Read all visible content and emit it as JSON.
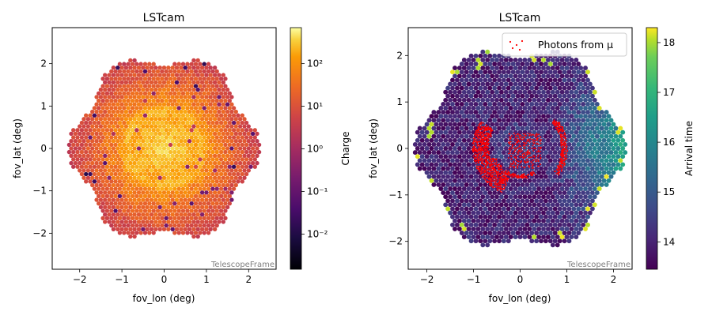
{
  "chart_data": [
    {
      "type": "heatmap",
      "title": "LSTcam",
      "xlabel": "fov_lon  (deg)",
      "ylabel": "fov_lat  (deg)",
      "xlim": [
        -2.65,
        2.65
      ],
      "ylim": [
        -2.85,
        2.85
      ],
      "xticks": [
        -2,
        -1,
        0,
        1,
        2
      ],
      "yticks": [
        -2,
        -1,
        0,
        1,
        2
      ],
      "tick_labels_x": [
        "−2",
        "−1",
        "0",
        "1",
        "2"
      ],
      "tick_labels_y": [
        "−2",
        "−1",
        "0",
        "1",
        "2"
      ],
      "frame_label": "TelescopeFrame",
      "camera_radius_deg": 2.3,
      "pixel_pitch_deg": 0.1,
      "colorbar": {
        "label": "Charge",
        "scale": "log",
        "colormap": "inferno",
        "range": [
          0.0015,
          700
        ],
        "ticks": [
          0.01,
          0.1,
          1,
          10,
          100
        ],
        "tick_labels": [
          "10⁻²",
          "10⁻¹",
          "10⁰",
          "10¹",
          "10²"
        ]
      },
      "pattern": "charge peaks near the camera center (~100–300) and falls to ~1 toward the edges; a faint ring around radius ~0.9 deg",
      "colors": {
        "low": "#000004",
        "mid": "#bc3754",
        "high": "#fcffa4"
      }
    },
    {
      "type": "heatmap",
      "title": "LSTcam",
      "xlabel": "fov_lon  (deg)",
      "ylabel": "fov_lat  (deg)",
      "xlim": [
        -2.4,
        2.4
      ],
      "ylim": [
        -2.6,
        2.6
      ],
      "xticks": [
        -2,
        -1,
        0,
        1,
        2
      ],
      "yticks": [
        -2,
        -1,
        0,
        1,
        2
      ],
      "tick_labels_x": [
        "−2",
        "−1",
        "0",
        "1",
        "2"
      ],
      "tick_labels_y": [
        "−2",
        "−1",
        "0",
        "1",
        "2"
      ],
      "frame_label": "TelescopeFrame",
      "camera_radius_deg": 2.3,
      "pixel_pitch_deg": 0.1,
      "colorbar": {
        "label": "Arrival time",
        "scale": "linear",
        "colormap": "viridis",
        "range": [
          13.45,
          18.3
        ],
        "ticks": [
          14,
          15,
          16,
          17,
          18
        ],
        "tick_labels": [
          "14",
          "15",
          "16",
          "17",
          "18"
        ]
      },
      "legend": {
        "label": "Photons from μ",
        "placement": "top-right",
        "marker_color": "#ff0000"
      },
      "overlay": {
        "name": "Photons from μ",
        "color": "#ff0000",
        "pattern": "red photon points along a ring of radius ~0.9 deg centered near (0, 0), concentrated on the left and right arcs, plus a cluster near the center"
      },
      "pattern": "arrival time ~14 over most of the camera, rising to ~16–17 toward the right edge, a few bright (~18) pixels around the rim",
      "colors": {
        "low": "#440154",
        "mid": "#21918c",
        "high": "#fde725"
      }
    }
  ]
}
